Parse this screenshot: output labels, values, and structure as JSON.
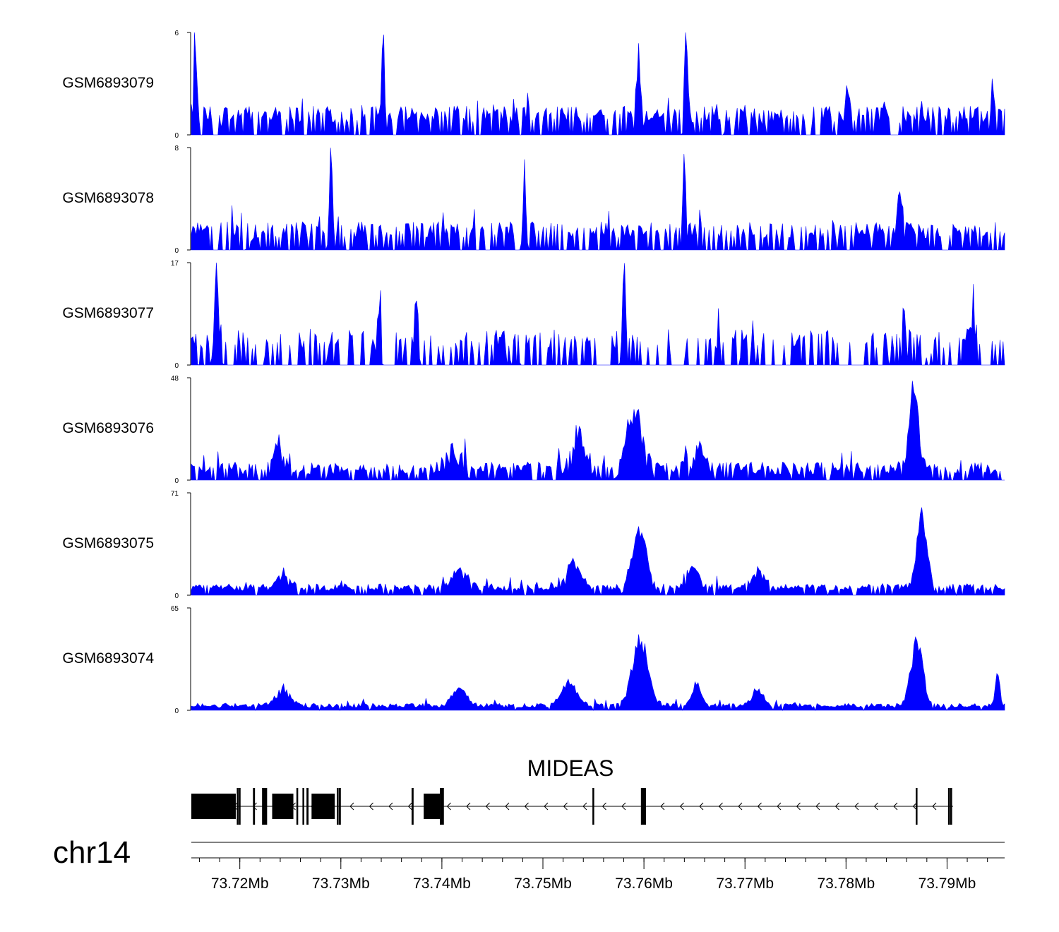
{
  "chart_data": {
    "type": "area",
    "title": "",
    "chromosome": "chr14",
    "fill_color": "#0000ff",
    "line_color": "#000000",
    "x_range_mb": [
      73.7152,
      73.7957
    ],
    "x_ticks_mb": [
      73.72,
      73.73,
      73.74,
      73.75,
      73.76,
      73.77,
      73.78,
      73.79
    ],
    "x_tick_labels": [
      "73.72Mb",
      "73.73Mb",
      "73.74Mb",
      "73.75Mb",
      "73.76Mb",
      "73.77Mb",
      "73.78Mb",
      "73.79Mb"
    ],
    "tracks": [
      {
        "name": "GSM6893079",
        "ymin": 0,
        "ymax": 6,
        "ymin_label": "0",
        "ymax_label": "6",
        "base": 0.7,
        "noise": 1.0,
        "sparsity": 0.35,
        "peaks": [
          [
            73.7156,
            6,
            0.0002
          ],
          [
            73.7342,
            6,
            0.0002
          ],
          [
            73.7595,
            4,
            0.0003
          ],
          [
            73.7642,
            6,
            0.0002
          ],
          [
            73.7801,
            3,
            0.0003
          ],
          [
            73.7945,
            4,
            0.0002
          ]
        ]
      },
      {
        "name": "GSM6893078",
        "ymin": 0,
        "ymax": 8,
        "ymin_label": "0",
        "ymax_label": "8",
        "base": 0.9,
        "noise": 1.3,
        "sparsity": 0.35,
        "peaks": [
          [
            73.729,
            8,
            0.0002
          ],
          [
            73.7482,
            5,
            0.0002
          ],
          [
            73.764,
            6.5,
            0.0002
          ],
          [
            73.7854,
            5,
            0.0003
          ]
        ]
      },
      {
        "name": "GSM6893077",
        "ymin": 0,
        "ymax": 17,
        "ymin_label": "0",
        "ymax_label": "17",
        "base": 2.5,
        "noise": 3.5,
        "sparsity": 0.62,
        "peaks": [
          [
            73.7177,
            17,
            0.0003
          ],
          [
            73.7337,
            11,
            0.0002
          ],
          [
            73.7375,
            11,
            0.0002
          ],
          [
            73.758,
            17,
            0.0002
          ],
          [
            73.7858,
            11,
            0.0002
          ],
          [
            73.7926,
            11,
            0.0002
          ]
        ]
      },
      {
        "name": "GSM6893076",
        "ymin": 0,
        "ymax": 48,
        "ymin_label": "0",
        "ymax_label": "48",
        "base": 2.5,
        "noise": 6.0,
        "sparsity": 0.25,
        "peaks": [
          [
            73.7239,
            12,
            0.0008
          ],
          [
            73.7412,
            11,
            0.001
          ],
          [
            73.7536,
            18,
            0.0009
          ],
          [
            73.759,
            32,
            0.001
          ],
          [
            73.7655,
            12,
            0.0006
          ],
          [
            73.7867,
            44,
            0.0007
          ]
        ]
      },
      {
        "name": "GSM6893075",
        "ymin": 0,
        "ymax": 71,
        "ymin_label": "0",
        "ymax_label": "71",
        "base": 3.0,
        "noise": 5.0,
        "sparsity": 0.15,
        "peaks": [
          [
            73.7243,
            12,
            0.0008
          ],
          [
            73.7418,
            14,
            0.001
          ],
          [
            73.7531,
            22,
            0.0009
          ],
          [
            73.7596,
            45,
            0.001
          ],
          [
            73.7648,
            18,
            0.0007
          ],
          [
            73.7713,
            15,
            0.0008
          ],
          [
            73.7875,
            55,
            0.0007
          ]
        ]
      },
      {
        "name": "GSM6893074",
        "ymin": 0,
        "ymax": 65,
        "ymin_label": "0",
        "ymax_label": "65",
        "base": 1.5,
        "noise": 3.0,
        "sparsity": 0.05,
        "peaks": [
          [
            73.7243,
            14,
            0.0009
          ],
          [
            73.7418,
            12,
            0.001
          ],
          [
            73.7526,
            18,
            0.001
          ],
          [
            73.7596,
            48,
            0.0011
          ],
          [
            73.7652,
            16,
            0.0006
          ],
          [
            73.7713,
            10,
            0.0008
          ],
          [
            73.787,
            48,
            0.0008
          ],
          [
            73.795,
            24,
            0.0003
          ]
        ]
      }
    ],
    "gene": {
      "name": "MIDEAS",
      "strand": "-",
      "start_mb": 73.7152,
      "end_mb": 73.7906,
      "exons_mb": [
        [
          73.7152,
          73.7196
        ],
        [
          73.7197,
          73.7198
        ],
        [
          73.7199,
          73.72
        ],
        [
          73.7213,
          73.7215
        ],
        [
          73.7222,
          73.7227
        ],
        [
          73.7232,
          73.7253
        ],
        [
          73.7256,
          73.7257
        ],
        [
          73.7262,
          73.7263
        ],
        [
          73.7266,
          73.7268
        ],
        [
          73.7271,
          73.7294
        ],
        [
          73.7296,
          73.7297
        ],
        [
          73.7298,
          73.73
        ],
        [
          73.737,
          73.7372
        ],
        [
          73.7382,
          73.7398
        ],
        [
          73.7398,
          73.7402
        ],
        [
          73.7549,
          73.755
        ],
        [
          73.7597,
          73.7602
        ],
        [
          73.7869,
          73.787
        ],
        [
          73.7901,
          73.7902
        ],
        [
          73.7903,
          73.7905
        ]
      ]
    }
  }
}
